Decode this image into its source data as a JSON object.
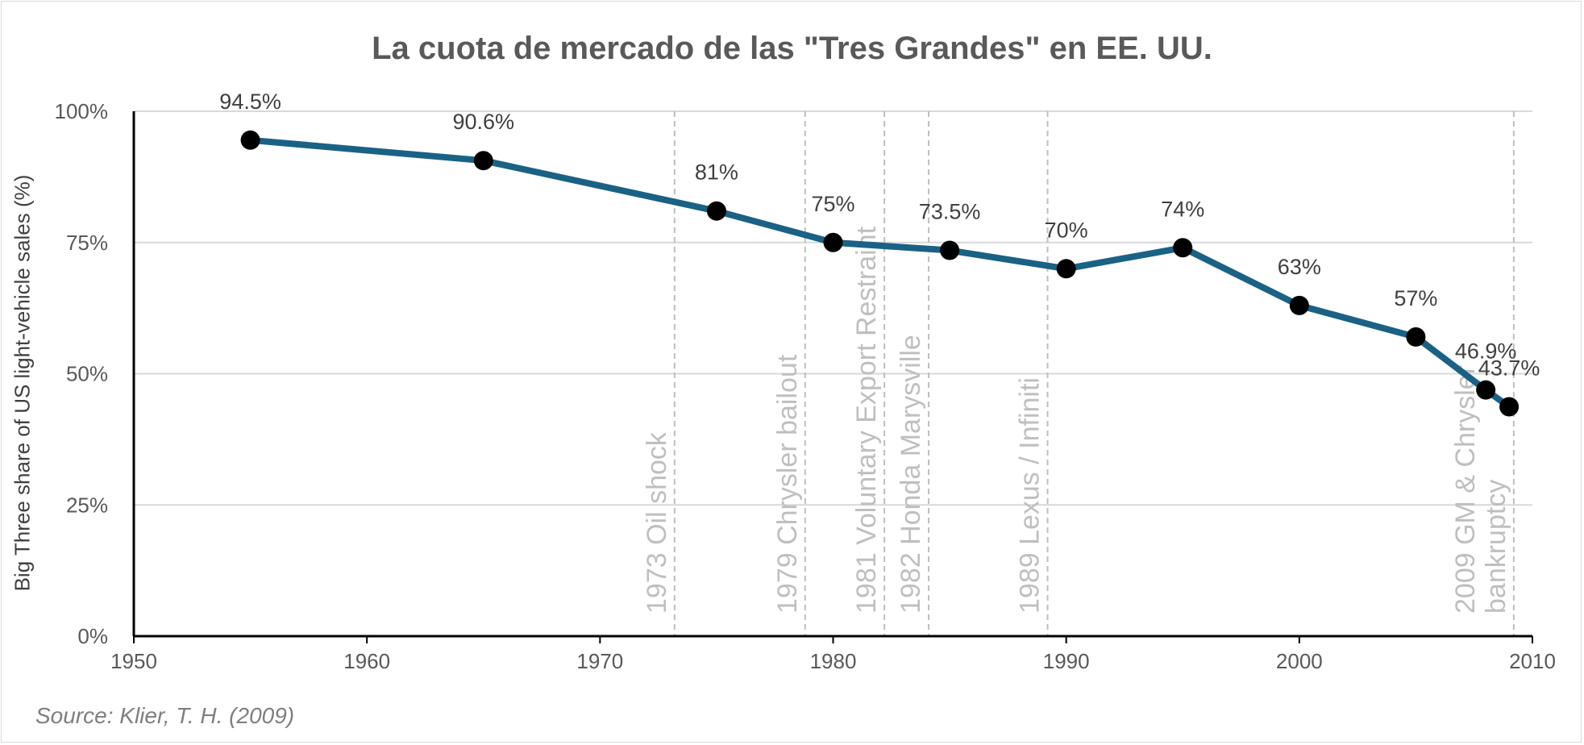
{
  "chart_data": {
    "type": "line",
    "title": "La cuota de mercado de las \"Tres Grandes\" en EE. UU.",
    "ylabel": "Big Three share of US light-vehicle sales (%)",
    "xlabel": "",
    "source": "Source: Klier, T. H. (2009)",
    "xlim": [
      1950,
      2010
    ],
    "ylim": [
      0,
      100
    ],
    "x_ticks": [
      1950,
      1960,
      1970,
      1980,
      1990,
      2000,
      2010
    ],
    "y_ticks": [
      {
        "value": 0,
        "label": "0%"
      },
      {
        "value": 25,
        "label": "25%"
      },
      {
        "value": 50,
        "label": "50%"
      },
      {
        "value": 75,
        "label": "75%"
      },
      {
        "value": 100,
        "label": "100%"
      }
    ],
    "grid": "horizontal",
    "colors": {
      "line": "#1a6285",
      "marker": "#000000",
      "grid": "#d9d9d9",
      "event_line": "#bfbfbf",
      "event_text": "#bfbfbf"
    },
    "series": [
      {
        "points": [
          {
            "x": 1955,
            "y": 94.5,
            "label": "94.5%"
          },
          {
            "x": 1965,
            "y": 90.6,
            "label": "90.6%"
          },
          {
            "x": 1975,
            "y": 81,
            "label": "81%"
          },
          {
            "x": 1980,
            "y": 75,
            "label": "75%"
          },
          {
            "x": 1985,
            "y": 73.5,
            "label": "73.5%"
          },
          {
            "x": 1990,
            "y": 70,
            "label": "70%"
          },
          {
            "x": 1995,
            "y": 74,
            "label": "74%"
          },
          {
            "x": 2000,
            "y": 63,
            "label": "63%"
          },
          {
            "x": 2005,
            "y": 57,
            "label": "57%"
          },
          {
            "x": 2008,
            "y": 46.9,
            "label": "46.9%"
          },
          {
            "x": 2009,
            "y": 43.7,
            "label": "43.7%"
          }
        ]
      }
    ],
    "events": [
      {
        "x": 1973.2,
        "lines": [
          "1973 Oil shock"
        ]
      },
      {
        "x": 1978.8,
        "lines": [
          "1979 Chrysler bailout"
        ]
      },
      {
        "x": 1982.2,
        "lines": [
          "1981 Voluntary Export Restraint"
        ]
      },
      {
        "x": 1984.1,
        "lines": [
          "1982 Honda Marysville"
        ]
      },
      {
        "x": 1989.2,
        "lines": [
          "1989 Lexus / Infiniti"
        ]
      },
      {
        "x": 2009.2,
        "lines": [
          "2009 GM & Chrysler",
          "bankruptcy"
        ]
      }
    ]
  }
}
